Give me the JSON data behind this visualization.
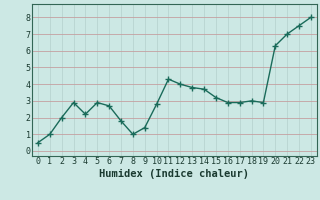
{
  "x": [
    0,
    1,
    2,
    3,
    4,
    5,
    6,
    7,
    8,
    9,
    10,
    11,
    12,
    13,
    14,
    15,
    16,
    17,
    18,
    19,
    20,
    21,
    22,
    23
  ],
  "y": [
    0.5,
    1.0,
    2.0,
    2.9,
    2.2,
    2.9,
    2.7,
    1.8,
    1.0,
    1.4,
    2.8,
    4.3,
    4.0,
    3.8,
    3.7,
    3.2,
    2.9,
    2.9,
    3.0,
    2.9,
    6.3,
    7.0,
    7.5,
    8.0
  ],
  "line_color": "#1a6b5a",
  "marker": "+",
  "marker_size": 4,
  "bg_color": "#cce8e4",
  "hgrid_color": "#c4a0a0",
  "vgrid_color": "#b8d4d0",
  "xlabel": "Humidex (Indice chaleur)",
  "xlim": [
    -0.5,
    23.5
  ],
  "ylim": [
    -0.3,
    8.8
  ],
  "yticks": [
    0,
    1,
    2,
    3,
    4,
    5,
    6,
    7,
    8
  ],
  "xticks": [
    0,
    1,
    2,
    3,
    4,
    5,
    6,
    7,
    8,
    9,
    10,
    11,
    12,
    13,
    14,
    15,
    16,
    17,
    18,
    19,
    20,
    21,
    22,
    23
  ],
  "tick_fontsize": 6,
  "xlabel_fontsize": 7.5,
  "linewidth": 1.0,
  "spine_color": "#336655"
}
